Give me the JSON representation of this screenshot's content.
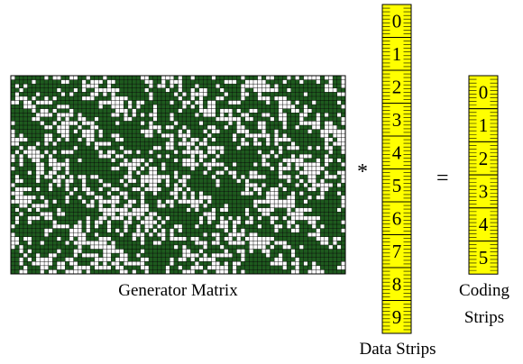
{
  "generator_matrix": {
    "label": "Generator Matrix",
    "rows": 48,
    "cols": 80,
    "fill_color": "#1e5a1e",
    "empty_color": "#ffffff",
    "grid_line_color": "#000000"
  },
  "operators": {
    "multiply": "*",
    "equals": "="
  },
  "data_strips": {
    "label": "Data Strips",
    "items": [
      "0",
      "1",
      "2",
      "3",
      "4",
      "5",
      "6",
      "7",
      "8",
      "9"
    ]
  },
  "coding_strips": {
    "label_line1": "Coding",
    "label_line2": "Strips",
    "items": [
      "0",
      "1",
      "2",
      "3",
      "4",
      "5"
    ]
  },
  "colors": {
    "strip_fill": "#ffff00",
    "strip_border": "#000000"
  }
}
